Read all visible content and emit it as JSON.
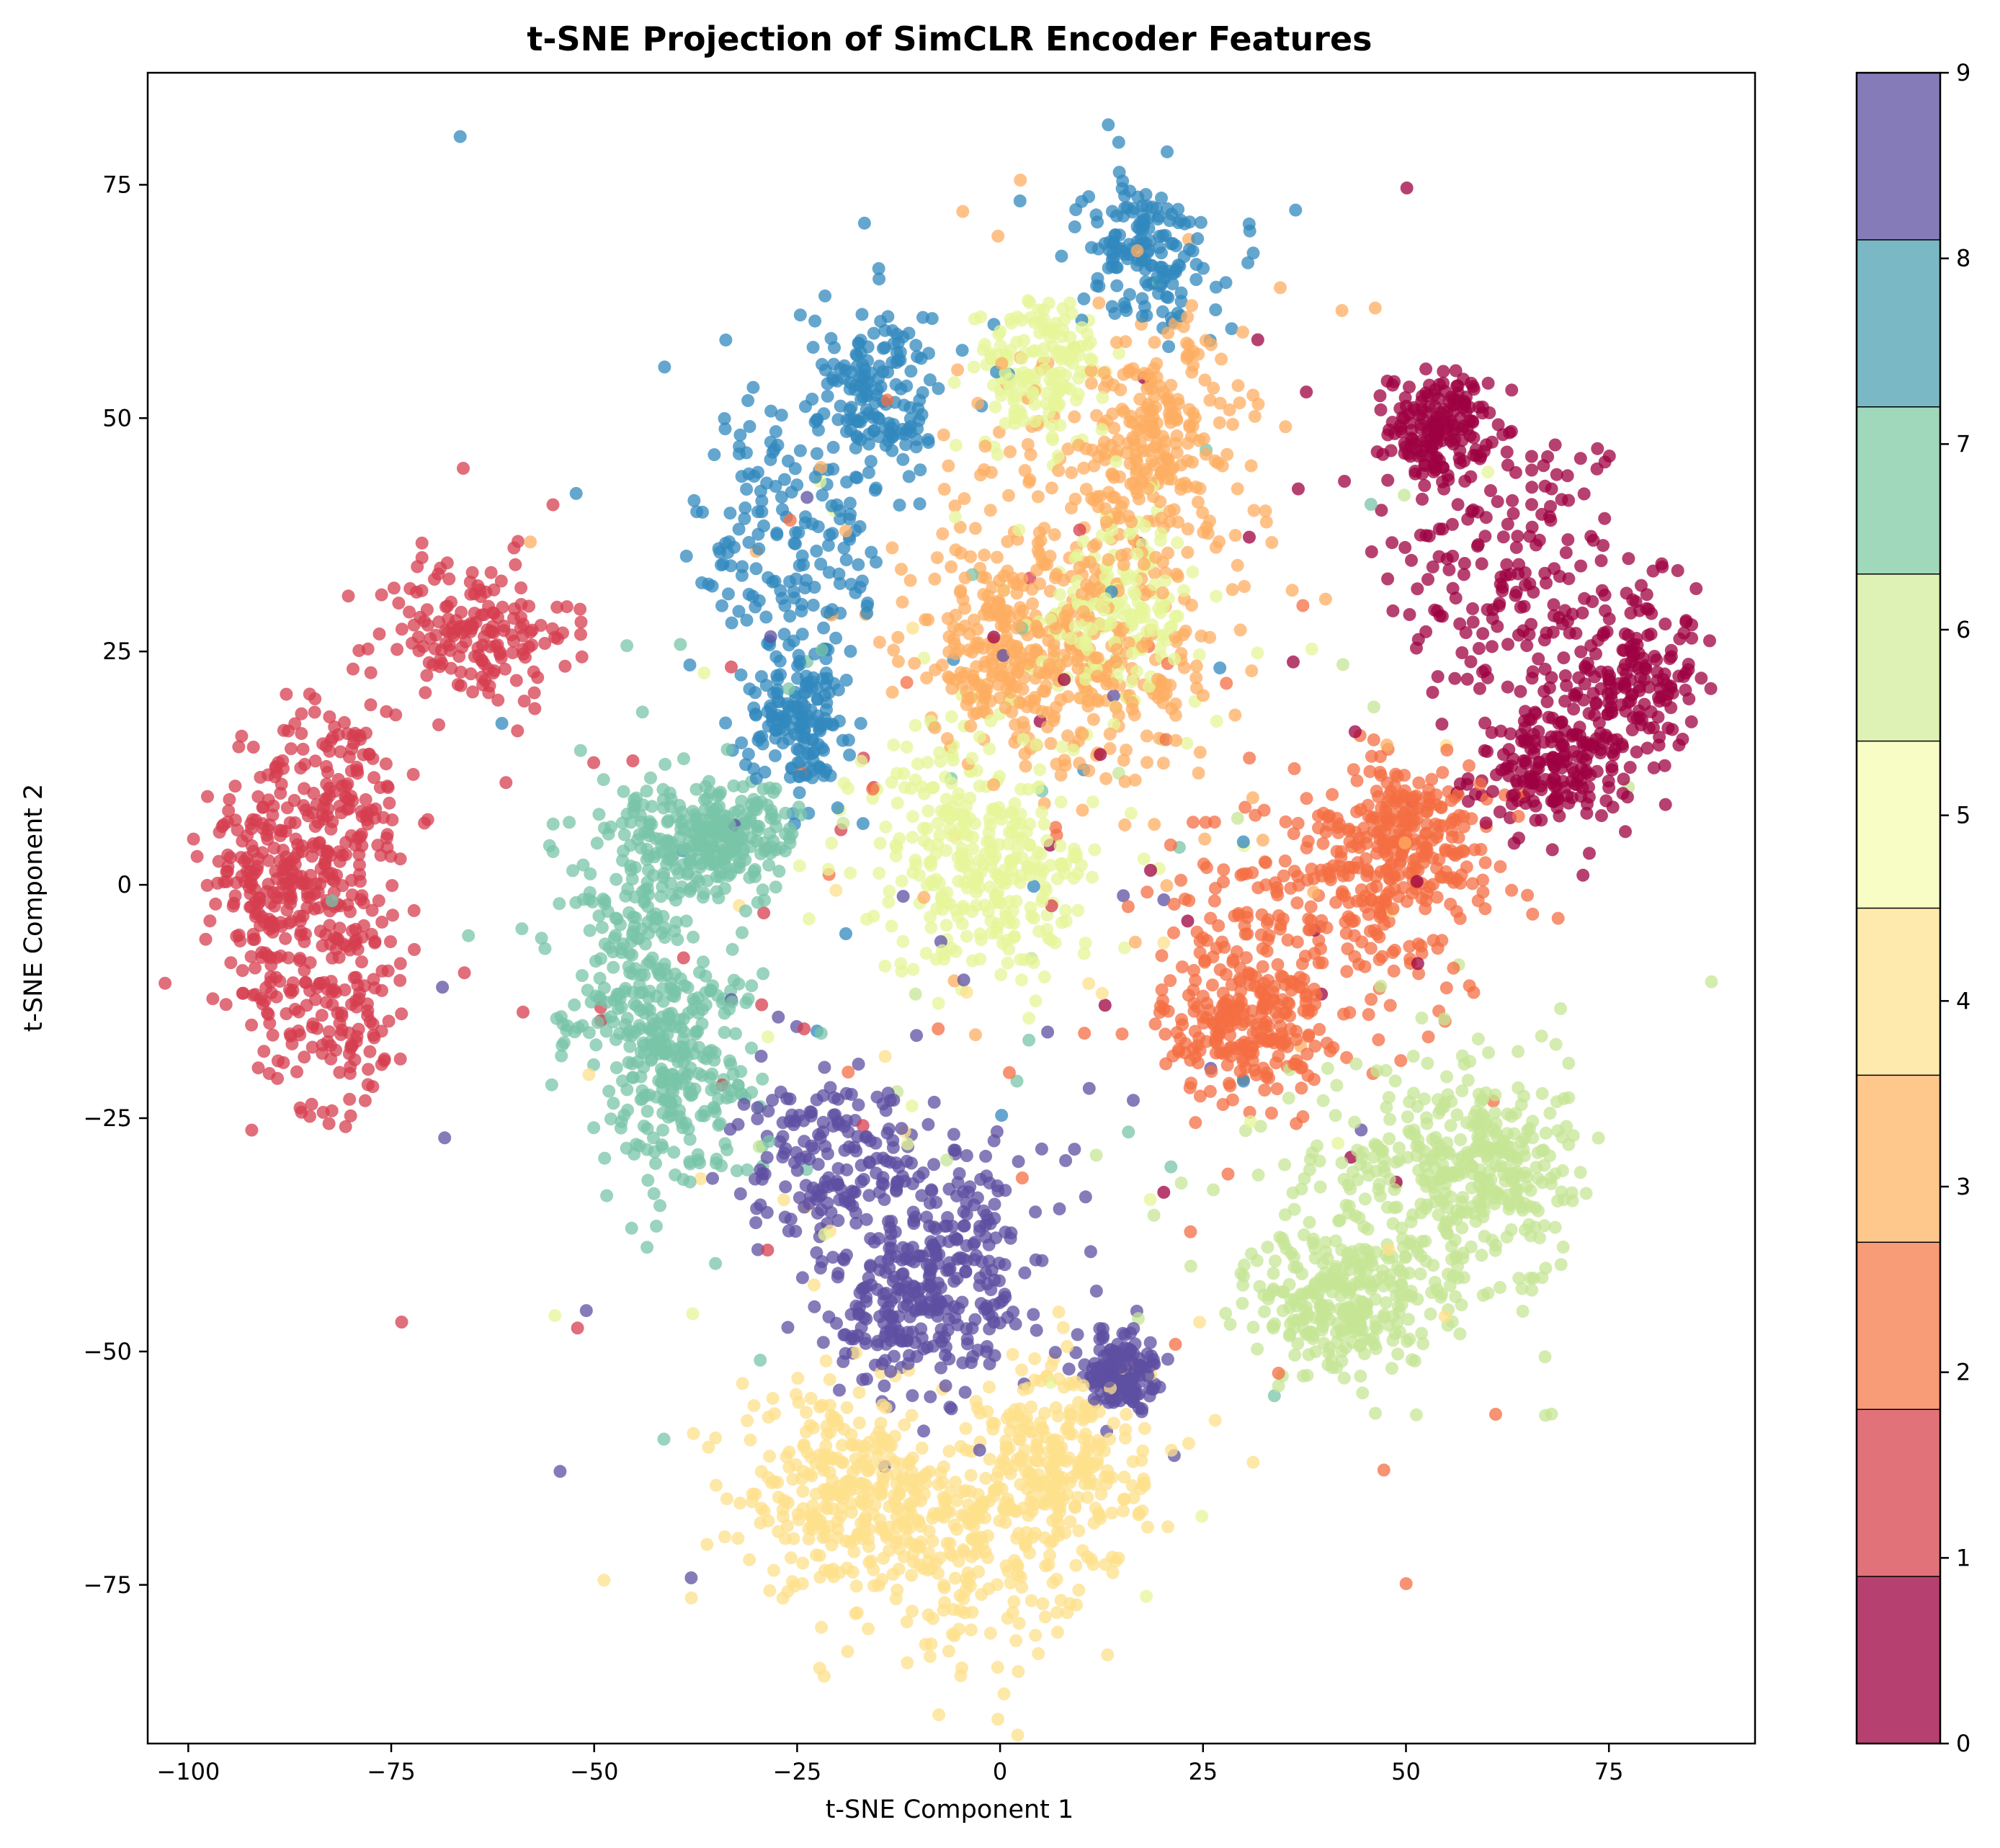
{
  "chart_data": {
    "type": "scatter",
    "title": "t-SNE Projection of SimCLR Encoder Features",
    "xlabel": "t-SNE Component 1",
    "ylabel": "t-SNE Component 2",
    "xlim": [
      -105,
      93
    ],
    "ylim": [
      -92,
      87
    ],
    "xticks": [
      -100,
      -75,
      -50,
      -25,
      0,
      25,
      50,
      75
    ],
    "yticks": [
      -75,
      -50,
      -25,
      0,
      25,
      50,
      75
    ],
    "xtick_labels": [
      "−100",
      "−75",
      "−50",
      "−25",
      "0",
      "25",
      "50",
      "75"
    ],
    "ytick_labels": [
      "−75",
      "−50",
      "−25",
      "0",
      "25",
      "50",
      "75"
    ],
    "grid": false,
    "point_alpha": 0.75,
    "colorbar": {
      "colormap": "Spectral",
      "range": [
        0,
        9
      ],
      "ticks": [
        "0",
        "1",
        "2",
        "3",
        "4",
        "5",
        "6",
        "7",
        "8",
        "9"
      ],
      "colors": [
        "#9e0142",
        "#d53e4f",
        "#f46d43",
        "#fdae61",
        "#fee08b",
        "#ffffbf",
        "#e6f598",
        "#abdda4",
        "#66c2a5",
        "#3288bd",
        "#5e4fa2"
      ],
      "band_colors": [
        "#9e0142",
        "#d8434e",
        "#f67a49",
        "#fdb567",
        "#fee391",
        "#f6fbb2",
        "#d3ee9c",
        "#7fcba4",
        "#4da0b3",
        "#5e4fa2"
      ]
    },
    "clusters": [
      {
        "label": 0,
        "color": "#9e0142",
        "center": [
          65,
          30
        ],
        "n": 700,
        "parts": [
          {
            "c": [
              63,
              33
            ],
            "s": [
              8,
              9
            ]
          },
          {
            "c": [
              78,
              22
            ],
            "s": [
              4,
              5
            ]
          },
          {
            "c": [
              68,
              12
            ],
            "s": [
              5,
              3
            ]
          },
          {
            "c": [
              54,
              49
            ],
            "s": [
              3,
              3
            ]
          }
        ]
      },
      {
        "label": 1,
        "color": "#d53e4f",
        "center": [
          -78,
          5
        ],
        "n": 700,
        "parts": [
          {
            "c": [
              -65,
              27
            ],
            "s": [
              6,
              4
            ]
          },
          {
            "c": [
              -82,
              8
            ],
            "s": [
              5,
              6
            ]
          },
          {
            "c": [
              -82,
              -12
            ],
            "s": [
              5,
              6
            ]
          },
          {
            "c": [
              -90,
              0
            ],
            "s": [
              4,
              5
            ]
          }
        ]
      },
      {
        "label": 2,
        "color": "#f46d43",
        "center": [
          40,
          -5
        ],
        "n": 700,
        "parts": [
          {
            "c": [
              40,
              -3
            ],
            "s": [
              10,
              7
            ]
          },
          {
            "c": [
              30,
              -15
            ],
            "s": [
              5,
              4
            ]
          },
          {
            "c": [
              50,
              5
            ],
            "s": [
              5,
              4
            ]
          }
        ]
      },
      {
        "label": 3,
        "color": "#fdae61",
        "center": [
          12,
          35
        ],
        "n": 750,
        "parts": [
          {
            "c": [
              10,
              40
            ],
            "s": [
              10,
              10
            ]
          },
          {
            "c": [
              20,
              48
            ],
            "s": [
              5,
              6
            ]
          },
          {
            "c": [
              0,
              25
            ],
            "s": [
              6,
              5
            ]
          },
          {
            "c": [
              12,
              22
            ],
            "s": [
              8,
              5
            ]
          }
        ]
      },
      {
        "label": 4,
        "color": "#fee08b",
        "center": [
          -5,
          -68
        ],
        "n": 750,
        "parts": [
          {
            "c": [
              -20,
              -65
            ],
            "s": [
              6,
              5
            ]
          },
          {
            "c": [
              -5,
              -70
            ],
            "s": [
              7,
              6
            ]
          },
          {
            "c": [
              8,
              -62
            ],
            "s": [
              5,
              6
            ]
          }
        ]
      },
      {
        "label": 5,
        "color": "#e6f598",
        "center": [
          0,
          5
        ],
        "n": 650,
        "parts": [
          {
            "c": [
              -5,
              5
            ],
            "s": [
              7,
              7
            ]
          },
          {
            "c": [
              0,
              0
            ],
            "s": [
              6,
              5
            ]
          },
          {
            "c": [
              5,
              55
            ],
            "s": [
              4,
              4
            ]
          },
          {
            "c": [
              15,
              30
            ],
            "s": [
              5,
              5
            ]
          }
        ]
      },
      {
        "label": 6,
        "color": "#c6e596",
        "center": [
          50,
          -35
        ],
        "n": 700,
        "parts": [
          {
            "c": [
              50,
              -35
            ],
            "s": [
              9,
              8
            ]
          },
          {
            "c": [
              60,
              -30
            ],
            "s": [
              5,
              5
            ]
          },
          {
            "c": [
              42,
              -45
            ],
            "s": [
              5,
              4
            ]
          }
        ]
      },
      {
        "label": 7,
        "color": "#78c4a8",
        "center": [
          -45,
          -5
        ],
        "n": 700,
        "parts": [
          {
            "c": [
              -45,
              -5
            ],
            "s": [
              5,
              8
            ]
          },
          {
            "c": [
              -40,
              -20
            ],
            "s": [
              5,
              6
            ]
          },
          {
            "c": [
              -35,
              5
            ],
            "s": [
              5,
              3
            ]
          }
        ]
      },
      {
        "label": 8,
        "color": "#3288bd",
        "center": [
          -20,
          40
        ],
        "n": 650,
        "parts": [
          {
            "c": [
              -25,
              38
            ],
            "s": [
              6,
              8
            ]
          },
          {
            "c": [
              -15,
              52
            ],
            "s": [
              4,
              5
            ]
          },
          {
            "c": [
              18,
              68
            ],
            "s": [
              4,
              4
            ]
          },
          {
            "c": [
              -25,
              18
            ],
            "s": [
              3,
              4
            ]
          }
        ]
      },
      {
        "label": 9,
        "color": "#5e4fa2",
        "center": [
          -10,
          -35
        ],
        "n": 700,
        "parts": [
          {
            "c": [
              -20,
              -30
            ],
            "s": [
              6,
              5
            ]
          },
          {
            "c": [
              -5,
              -40
            ],
            "s": [
              5,
              6
            ]
          },
          {
            "c": [
              15,
              -52
            ],
            "s": [
              2,
              2
            ]
          },
          {
            "c": [
              -12,
              -45
            ],
            "s": [
              5,
              5
            ]
          }
        ]
      }
    ]
  }
}
